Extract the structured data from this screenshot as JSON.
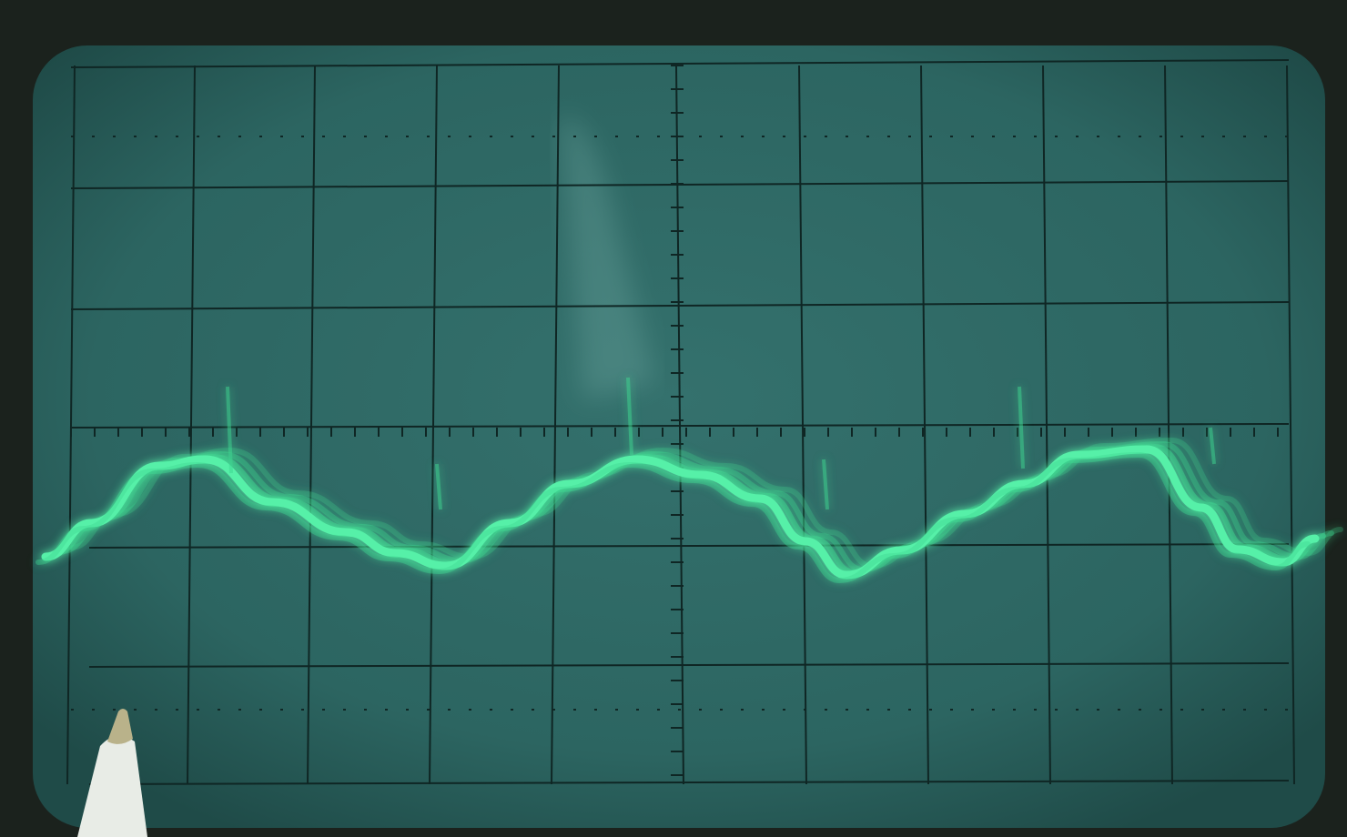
{
  "scene": {
    "subject": "oscilloscope-screen",
    "grid": {
      "columns": 10,
      "rows": 6
    },
    "colors": {
      "bezel": "#1b221d",
      "screen": "#2e6764",
      "screen_edge": "#24524f",
      "grid_line": "#0f2624",
      "trace": "#57f0a8",
      "trace_glow": "#3fd690",
      "pen_body": "#e8ece6",
      "pen_tip": "#b9b28a"
    },
    "icons": [
      "pen-tip-icon"
    ]
  }
}
